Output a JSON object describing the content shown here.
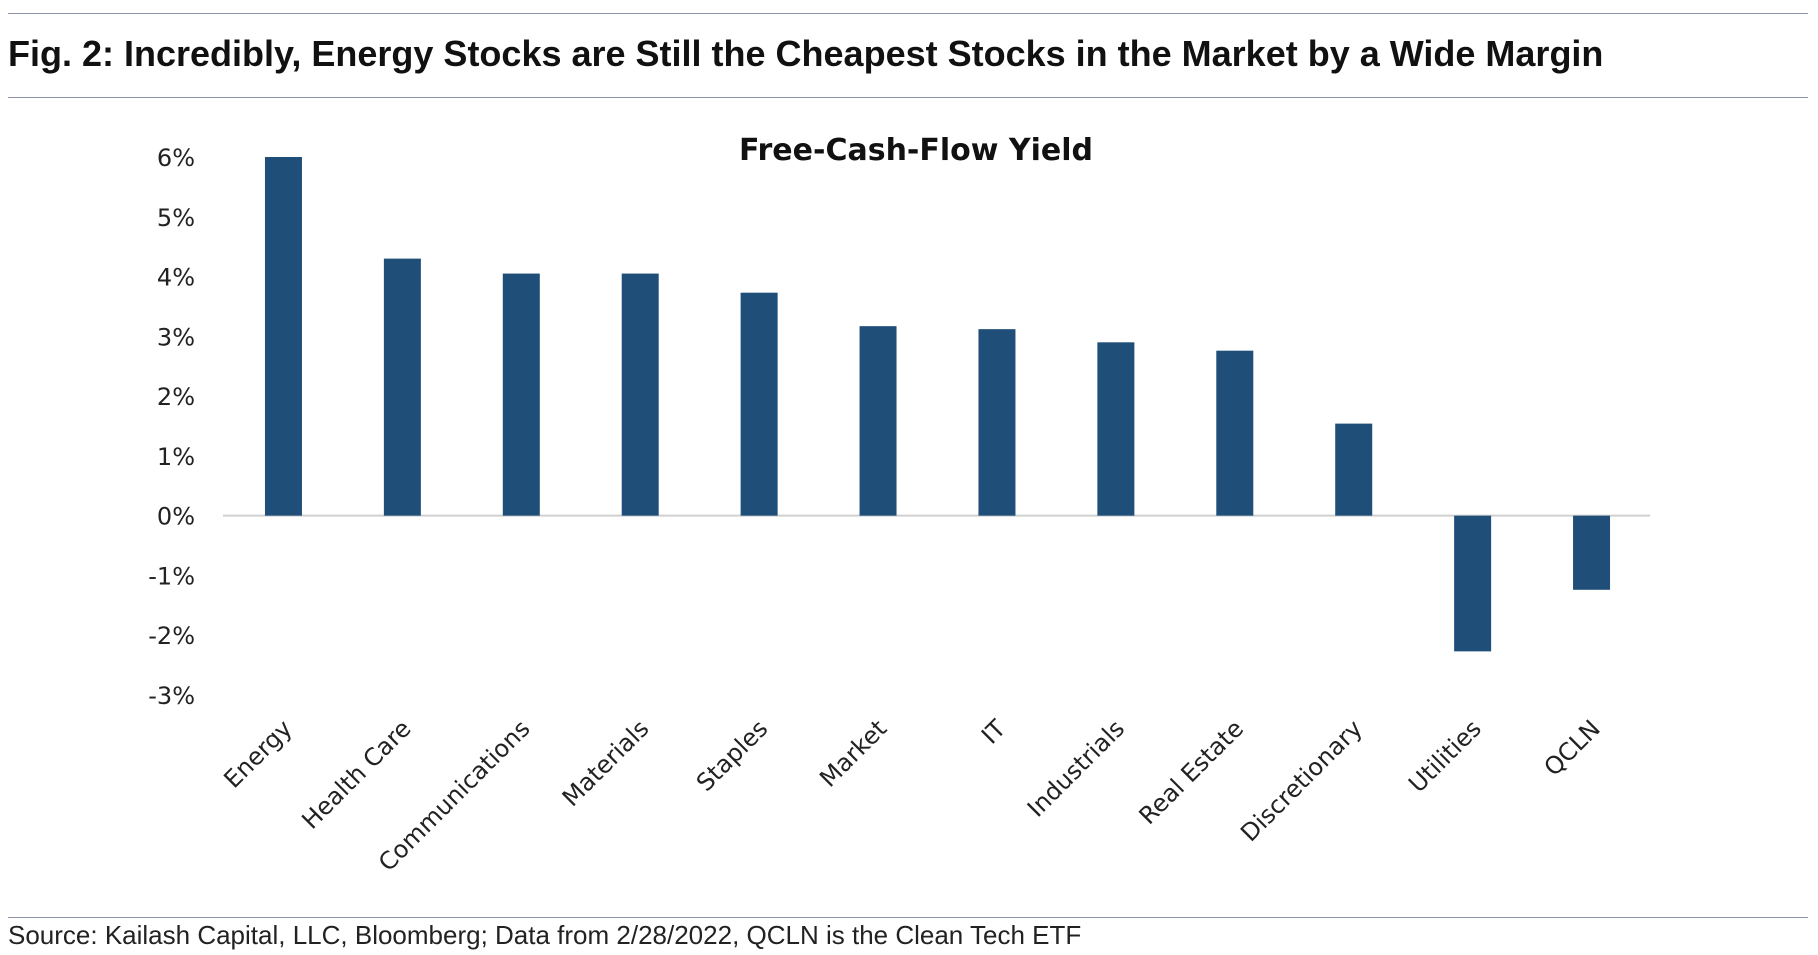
{
  "figure": {
    "title": "Fig. 2: Incredibly, Energy Stocks are Still the Cheapest Stocks in the Market by a Wide Margin",
    "source": "Source: Kailash Capital, LLC, Bloomberg; Data from 2/28/2022, QCLN is the Clean Tech ETF"
  },
  "chart_data": {
    "type": "bar",
    "title": "Free-Cash-Flow Yield",
    "xlabel": "",
    "ylabel": "",
    "categories": [
      "Energy",
      "Health Care",
      "Communications",
      "Materials",
      "Staples",
      "Market",
      "IT",
      "Industrials",
      "Real Estate",
      "Discretionary",
      "Utilities",
      "QCLN"
    ],
    "values": [
      6.0,
      4.3,
      4.05,
      4.05,
      3.73,
      3.17,
      3.12,
      2.9,
      2.76,
      1.54,
      -2.27,
      -1.24
    ],
    "unit": "%",
    "ylim": [
      -3,
      6
    ],
    "yticks": [
      "6%",
      "5%",
      "4%",
      "3%",
      "2%",
      "1%",
      "0%",
      "-1%",
      "-2%",
      "-3%"
    ],
    "grid": false,
    "legend": "none",
    "bar_color": "#1f4e79"
  }
}
